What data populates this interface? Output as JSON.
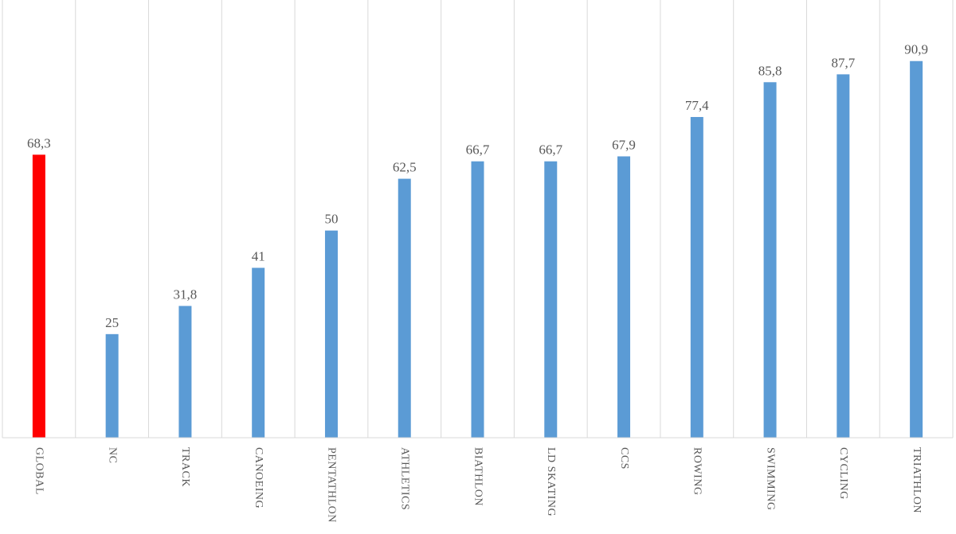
{
  "chart_data": {
    "type": "bar",
    "categories": [
      "GLOBAL",
      "NC",
      "TRACK",
      "CANOEING",
      "PENTATHLON",
      "ATHLETICS",
      "BIATHLON",
      "LD SKATING",
      "CCS",
      "ROWING",
      "SWIMMING",
      "CYCLING",
      "TRIATHLON"
    ],
    "values": [
      68.3,
      25,
      31.8,
      41,
      50,
      62.5,
      66.7,
      66.7,
      67.9,
      77.4,
      85.8,
      87.7,
      90.9
    ],
    "value_labels": [
      "68,3",
      "25",
      "31,8",
      "41",
      "50",
      "62,5",
      "66,7",
      "66,7",
      "67,9",
      "77,4",
      "85,8",
      "87,7",
      "90,9"
    ],
    "bar_colors": [
      "#ff0000",
      "#5b9bd5",
      "#5b9bd5",
      "#5b9bd5",
      "#5b9bd5",
      "#5b9bd5",
      "#5b9bd5",
      "#5b9bd5",
      "#5b9bd5",
      "#5b9bd5",
      "#5b9bd5",
      "#5b9bd5",
      "#5b9bd5"
    ],
    "title": "",
    "xlabel": "",
    "ylabel": "",
    "ylim": [
      0,
      100
    ],
    "grid": "vertical category separators",
    "legend": "none"
  }
}
